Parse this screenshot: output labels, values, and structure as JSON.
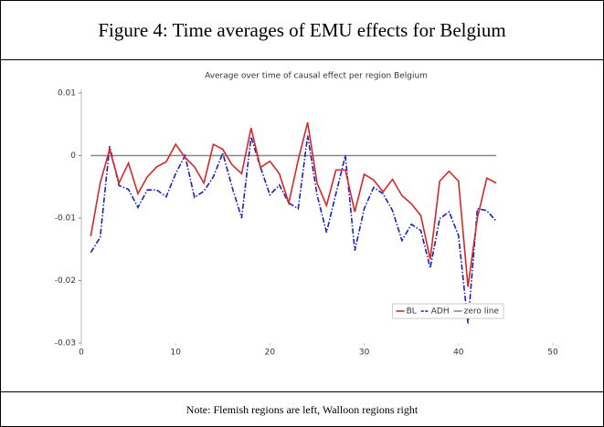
{
  "figure_title": "Figure 4: Time averages of EMU effects for Belgium",
  "note": "Note: Flemish regions are left, Walloon regions right",
  "chart_data": {
    "type": "line",
    "title": "Average over time of causal effect per region Belgium",
    "x": [
      1,
      2,
      3,
      4,
      5,
      6,
      7,
      8,
      9,
      10,
      11,
      12,
      13,
      14,
      15,
      16,
      17,
      18,
      19,
      20,
      21,
      22,
      23,
      24,
      25,
      26,
      27,
      28,
      29,
      30,
      31,
      32,
      33,
      34,
      35,
      36,
      37,
      38,
      39,
      40,
      41,
      42,
      43,
      44
    ],
    "series": [
      {
        "name": "BL",
        "color": "#d62728",
        "dash": "solid",
        "values": [
          -0.0129,
          -0.0044,
          0.001,
          -0.0044,
          -0.0012,
          -0.0061,
          -0.0034,
          -0.0018,
          -0.001,
          0.0018,
          -0.0003,
          -0.0018,
          -0.0044,
          0.0018,
          0.001,
          -0.0015,
          -0.0029,
          0.0044,
          -0.0019,
          -0.0009,
          -0.0029,
          -0.0076,
          -0.0007,
          0.0053,
          -0.0044,
          -0.008,
          -0.0023,
          -0.0023,
          -0.009,
          -0.003,
          -0.0039,
          -0.0058,
          -0.0038,
          -0.0064,
          -0.0077,
          -0.0096,
          -0.0166,
          -0.0041,
          -0.0025,
          -0.0041,
          -0.021,
          -0.01,
          -0.0036,
          -0.0044
        ]
      },
      {
        "name": "ADH",
        "color": "#1f1fb4",
        "dash": "dashdot",
        "values": [
          -0.0155,
          -0.0131,
          0.0015,
          -0.0048,
          -0.0054,
          -0.0083,
          -0.0055,
          -0.0055,
          -0.0066,
          -0.0029,
          0,
          -0.0067,
          -0.0057,
          -0.0034,
          0.0004,
          -0.0051,
          -0.01,
          0.003,
          -0.0019,
          -0.0063,
          -0.0047,
          -0.0076,
          -0.0085,
          0.0032,
          -0.0063,
          -0.0123,
          -0.0061,
          0,
          -0.0152,
          -0.0085,
          -0.0051,
          -0.0061,
          -0.0088,
          -0.0136,
          -0.011,
          -0.012,
          -0.018,
          -0.0101,
          -0.009,
          -0.0128,
          -0.0269,
          -0.0085,
          -0.0088,
          -0.0105
        ]
      },
      {
        "name": "zero line",
        "color": "#888888",
        "dash": "solid",
        "values": [
          0,
          0,
          0,
          0,
          0,
          0,
          0,
          0,
          0,
          0,
          0,
          0,
          0,
          0,
          0,
          0,
          0,
          0,
          0,
          0,
          0,
          0,
          0,
          0,
          0,
          0,
          0,
          0,
          0,
          0,
          0,
          0,
          0,
          0,
          0,
          0,
          0,
          0,
          0,
          0,
          0,
          0,
          0,
          0
        ]
      }
    ],
    "xlim": [
      0,
      50
    ],
    "xticks": [
      0,
      10,
      20,
      30,
      40,
      50
    ],
    "ylim": [
      -0.03,
      0.01
    ],
    "yticks": [
      0.01,
      0,
      -0.01,
      -0.02,
      -0.03
    ],
    "legend": "lower right"
  }
}
